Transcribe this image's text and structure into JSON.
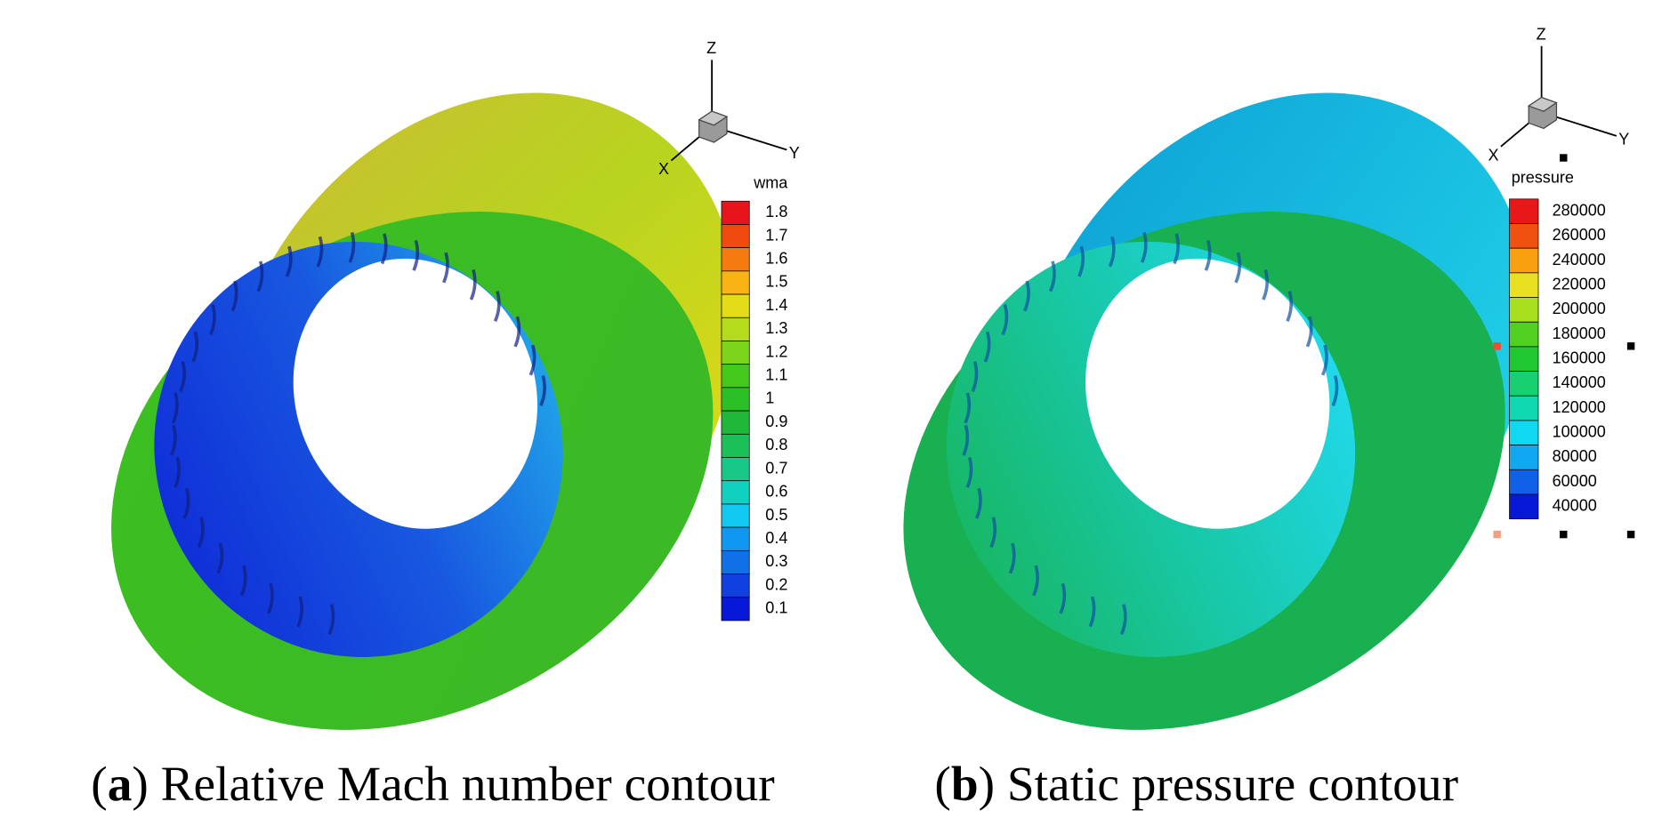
{
  "panels": [
    {
      "caption_parts": [
        "(",
        "a",
        ") Relative Mach number contour"
      ],
      "axes": {
        "z": "Z",
        "y": "Y",
        "x": "X"
      },
      "legend": {
        "title": "wma",
        "levels": [
          1.8,
          1.7,
          1.6,
          1.5,
          1.4,
          1.3,
          1.2,
          1.1,
          1,
          0.9,
          0.8,
          0.7,
          0.6,
          0.5,
          0.4,
          0.3,
          0.2,
          0.1
        ],
        "colors": [
          "#e8141c",
          "#f04a10",
          "#f57a10",
          "#f8b414",
          "#e4dc18",
          "#b4dc1c",
          "#7cd41c",
          "#44c81c",
          "#2cc028",
          "#20b838",
          "#1cc058",
          "#18c888",
          "#10d0c0",
          "#10c8f0",
          "#1098f0",
          "#1070e8",
          "#1040e0",
          "#0818d8"
        ]
      }
    },
    {
      "caption_parts": [
        "(",
        "b",
        ") Static pressure contour"
      ],
      "axes": {
        "z": "Z",
        "y": "Y",
        "x": "X"
      },
      "legend": {
        "title": "pressure",
        "levels": [
          280000,
          260000,
          240000,
          220000,
          200000,
          180000,
          160000,
          140000,
          120000,
          100000,
          80000,
          60000,
          40000
        ],
        "colors": [
          "#e81818",
          "#f05010",
          "#f8a010",
          "#e8e020",
          "#a8e020",
          "#50d020",
          "#20c830",
          "#18d070",
          "#10d8b0",
          "#10d8f0",
          "#10a8f0",
          "#1060e8",
          "#0818d8"
        ]
      }
    }
  ]
}
